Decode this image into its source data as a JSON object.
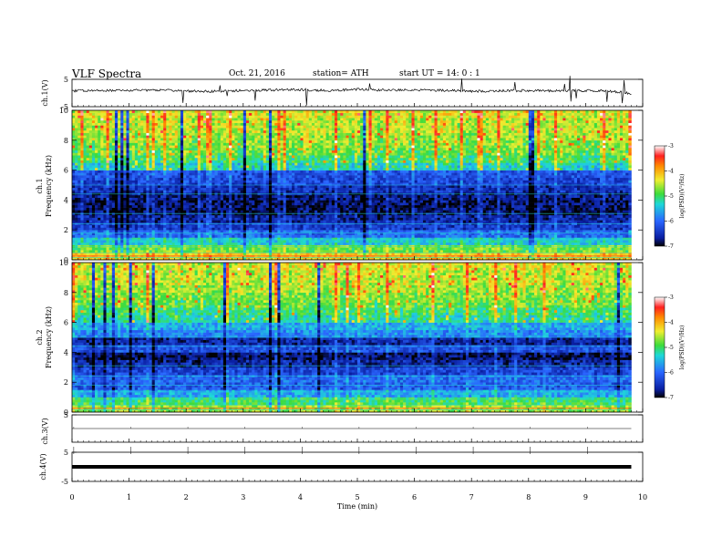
{
  "header": {
    "title": "VLF  Spectra",
    "date": "Oct. 21, 2016",
    "station": "station= ATH",
    "start": "start  UT  =    14: 0  : 1"
  },
  "colors": {
    "lowest": "#000000",
    "low": "#0a1ea0",
    "mid_low": "#2a66ff",
    "mid": "#1ed8d8",
    "mid_high": "#3cdc3c",
    "high": "#f0ee30",
    "very_high": "#ff8a00",
    "highest": "#ff2020",
    "max": "#ffffff"
  },
  "chart_data": [
    {
      "type": "line",
      "ylabel": "ch.1(V)",
      "ylim": [
        -5,
        5
      ],
      "yticks": [
        {
          "v": 5,
          "label": "5"
        },
        {
          "v": -5,
          "label": "-5"
        }
      ],
      "x": [
        0,
        0.5,
        1,
        1.5,
        2,
        2.5,
        3,
        3.5,
        4,
        4.5,
        5,
        5.5,
        6,
        6.5,
        7,
        7.5,
        8,
        8.5,
        9,
        9.5,
        9.8
      ],
      "y": [
        0.8,
        0.9,
        1.0,
        1.1,
        0.7,
        0.6,
        0.9,
        1.1,
        1.2,
        0.9,
        1.3,
        1.0,
        1.1,
        1.0,
        0.6,
        0.8,
        0.9,
        0.8,
        0.9,
        0.6,
        -0.2
      ]
    },
    {
      "type": "heatmap",
      "ylabel": "ch.1\nFrequency  (kHz)",
      "ylim": [
        0,
        10
      ],
      "yticks": [
        {
          "v": 0,
          "label": "0"
        },
        {
          "v": 2,
          "label": "2"
        },
        {
          "v": 4,
          "label": "4"
        },
        {
          "v": 6,
          "label": "6"
        },
        {
          "v": 8,
          "label": "8"
        },
        {
          "v": 10,
          "label": "10"
        }
      ],
      "colorbar_label": "log(PSD)(V²/Hz)",
      "colorbar_ticks": [
        {
          "v": -3,
          "label": "-3"
        },
        {
          "v": -4,
          "label": "-4"
        },
        {
          "v": -5,
          "label": "-5"
        },
        {
          "v": -6,
          "label": "-6"
        },
        {
          "v": -7,
          "label": "-7"
        }
      ],
      "clim": [
        -7,
        -3
      ],
      "freq_kHz": [
        0.25,
        0.75,
        1.25,
        1.75,
        2.25,
        2.75,
        3.25,
        3.75,
        4.25,
        4.75,
        5.25,
        5.75,
        6.25,
        6.75,
        7.25,
        7.75,
        8.25,
        8.75,
        9.25,
        9.75
      ],
      "log_psd": [
        -4.2,
        -4.8,
        -5.4,
        -6.0,
        -6.4,
        -6.6,
        -6.8,
        -6.8,
        -6.7,
        -6.5,
        -6.3,
        -6.2,
        -5.3,
        -5.0,
        -4.8,
        -4.7,
        -4.6,
        -4.5,
        -4.5,
        -4.4
      ]
    },
    {
      "type": "heatmap",
      "ylabel": "ch.2\nFrequency  (kHz)",
      "ylim": [
        0,
        10
      ],
      "yticks": [
        {
          "v": 0,
          "label": "0"
        },
        {
          "v": 2,
          "label": "2"
        },
        {
          "v": 4,
          "label": "4"
        },
        {
          "v": 6,
          "label": "6"
        },
        {
          "v": 8,
          "label": "8"
        },
        {
          "v": 10,
          "label": "10"
        }
      ],
      "colorbar_label": "log(PSD)(V²/Hz)",
      "colorbar_ticks": [
        {
          "v": -3,
          "label": "-3"
        },
        {
          "v": -4,
          "label": "-4"
        },
        {
          "v": -5,
          "label": "-5"
        },
        {
          "v": -6,
          "label": "-6"
        },
        {
          "v": -7,
          "label": "-7"
        }
      ],
      "clim": [
        -7,
        -3
      ],
      "freq_kHz": [
        0.25,
        0.75,
        1.25,
        1.75,
        2.25,
        2.75,
        3.25,
        3.75,
        4.25,
        4.75,
        5.25,
        5.75,
        6.25,
        6.75,
        7.25,
        7.75,
        8.25,
        8.75,
        9.25,
        9.75
      ],
      "log_psd": [
        -4.6,
        -5.0,
        -5.6,
        -6.1,
        -6.0,
        -6.3,
        -6.6,
        -6.8,
        -6.2,
        -6.6,
        -5.8,
        -5.6,
        -5.2,
        -5.0,
        -4.8,
        -4.7,
        -4.6,
        -4.5,
        -4.5,
        -4.4
      ]
    },
    {
      "type": "line",
      "ylabel": "ch.3(V)",
      "ylim": [
        -5,
        5
      ],
      "yticks": [
        {
          "v": 5,
          "label": "5"
        }
      ],
      "x": [
        0,
        9.8
      ],
      "y": [
        0,
        0
      ]
    },
    {
      "type": "line",
      "ylabel": "ch.4(V)",
      "ylim": [
        -5,
        5
      ],
      "yticks": [
        {
          "v": 5,
          "label": "5"
        },
        {
          "v": -5,
          "label": "-5"
        }
      ],
      "x": [
        0,
        9.8
      ],
      "y": [
        0,
        0
      ]
    }
  ],
  "x_axis": {
    "label": "Time  (min)",
    "range": [
      0,
      10
    ],
    "ticks": [
      {
        "v": 0,
        "label": "0"
      },
      {
        "v": 1,
        "label": "1"
      },
      {
        "v": 2,
        "label": "2"
      },
      {
        "v": 3,
        "label": "3"
      },
      {
        "v": 4,
        "label": "4"
      },
      {
        "v": 5,
        "label": "5"
      },
      {
        "v": 6,
        "label": "6"
      },
      {
        "v": 7,
        "label": "7"
      },
      {
        "v": 8,
        "label": "8"
      },
      {
        "v": 9,
        "label": "9"
      },
      {
        "v": 10,
        "label": "10"
      }
    ]
  }
}
